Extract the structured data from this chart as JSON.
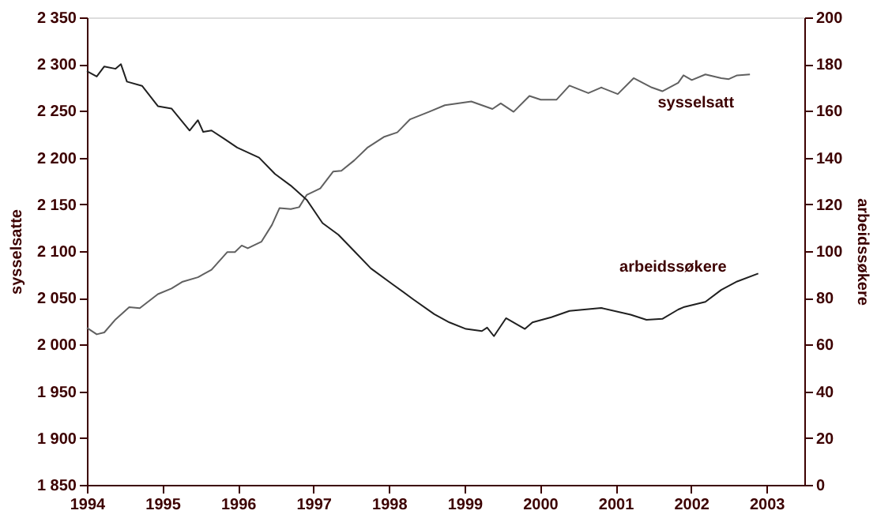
{
  "chart_data": {
    "type": "line",
    "ylabel": "sysselsatte",
    "y2label": "arbeidssøkere",
    "xlim": [
      1994,
      2003.5
    ],
    "xticks": [
      1994,
      1995,
      1996,
      1997,
      1998,
      1999,
      2000,
      2001,
      2002,
      2003
    ],
    "ylim": [
      1850,
      2350
    ],
    "yticks": [
      {
        "value": 1850,
        "label": "1 850"
      },
      {
        "value": 1900,
        "label": "1 900"
      },
      {
        "value": 1950,
        "label": "1 950"
      },
      {
        "value": 2000,
        "label": "2 000"
      },
      {
        "value": 2050,
        "label": "2 050"
      },
      {
        "value": 2100,
        "label": "2 100"
      },
      {
        "value": 2150,
        "label": "2 150"
      },
      {
        "value": 2200,
        "label": "2 200"
      },
      {
        "value": 2250,
        "label": "2 250"
      },
      {
        "value": 2300,
        "label": "2 300"
      },
      {
        "value": 2350,
        "label": "2 350"
      }
    ],
    "y2lim": [
      0,
      200
    ],
    "y2ticks": [
      0,
      20,
      40,
      60,
      80,
      100,
      120,
      140,
      160,
      180,
      200
    ],
    "grid": false,
    "series": [
      {
        "name": "sysselsatt",
        "color": "#606060",
        "axis": "y",
        "x": [
          1994.0,
          1994.13,
          1994.23,
          1994.38,
          1994.56,
          1994.7,
          1994.94,
          1995.12,
          1995.26,
          1995.47,
          1995.65,
          1995.86,
          1995.96,
          1996.05,
          1996.13,
          1996.31,
          1996.45,
          1996.55,
          1996.7,
          1996.81,
          1996.91,
          1997.09,
          1997.26,
          1997.37,
          1997.54,
          1997.72,
          1997.93,
          1998.11,
          1998.28,
          1998.53,
          1998.74,
          1999.09,
          1999.37,
          1999.48,
          1999.65,
          1999.86,
          2000.01,
          2000.22,
          2000.39,
          2000.64,
          2000.81,
          2001.03,
          2001.24,
          2001.48,
          2001.62,
          2001.83,
          2001.9,
          2002.01,
          2002.19,
          2002.4,
          2002.5,
          2002.61,
          2002.78
        ],
        "values": [
          2018,
          2011,
          2013,
          2027,
          2040,
          2039,
          2054,
          2060,
          2067,
          2072,
          2080,
          2099,
          2099,
          2106,
          2103,
          2110,
          2128,
          2146,
          2145,
          2147,
          2160,
          2167,
          2185,
          2186,
          2197,
          2211,
          2222,
          2227,
          2241,
          2249,
          2256,
          2260,
          2252,
          2258,
          2249,
          2266,
          2262,
          2262,
          2277,
          2269,
          2275,
          2268,
          2285,
          2275,
          2271,
          2280,
          2288,
          2283,
          2289,
          2285,
          2284,
          2288,
          2289
        ]
      },
      {
        "name": "arbeidssøkere",
        "color": "#202020",
        "axis": "y2",
        "x": [
          1994.0,
          1994.13,
          1994.23,
          1994.38,
          1994.45,
          1994.53,
          1994.73,
          1994.94,
          1995.12,
          1995.36,
          1995.47,
          1995.54,
          1995.65,
          1995.82,
          1995.99,
          1996.28,
          1996.49,
          1996.7,
          1996.91,
          1997.12,
          1997.33,
          1997.54,
          1997.76,
          1998.04,
          1998.32,
          1998.6,
          1998.8,
          1999.02,
          1999.23,
          1999.3,
          1999.39,
          1999.55,
          1999.8,
          1999.9,
          2000.15,
          2000.39,
          2000.81,
          2001.2,
          2001.41,
          2001.62,
          2001.83,
          2001.9,
          2002.19,
          2002.4,
          2002.61,
          2002.89
        ],
        "values": [
          177,
          174.7,
          179,
          178,
          180,
          172.5,
          170.7,
          162,
          161,
          151.6,
          156,
          151,
          151.6,
          148,
          144.3,
          140,
          133,
          128,
          122,
          112,
          107,
          100,
          92.6,
          86,
          79.4,
          73,
          69.5,
          66.7,
          65.8,
          67.3,
          63.6,
          71.3,
          66.7,
          69.5,
          71.7,
          74.4,
          75.7,
          72.8,
          70.6,
          71,
          75,
          76,
          78.3,
          83.4,
          87,
          90.4
        ]
      }
    ]
  }
}
